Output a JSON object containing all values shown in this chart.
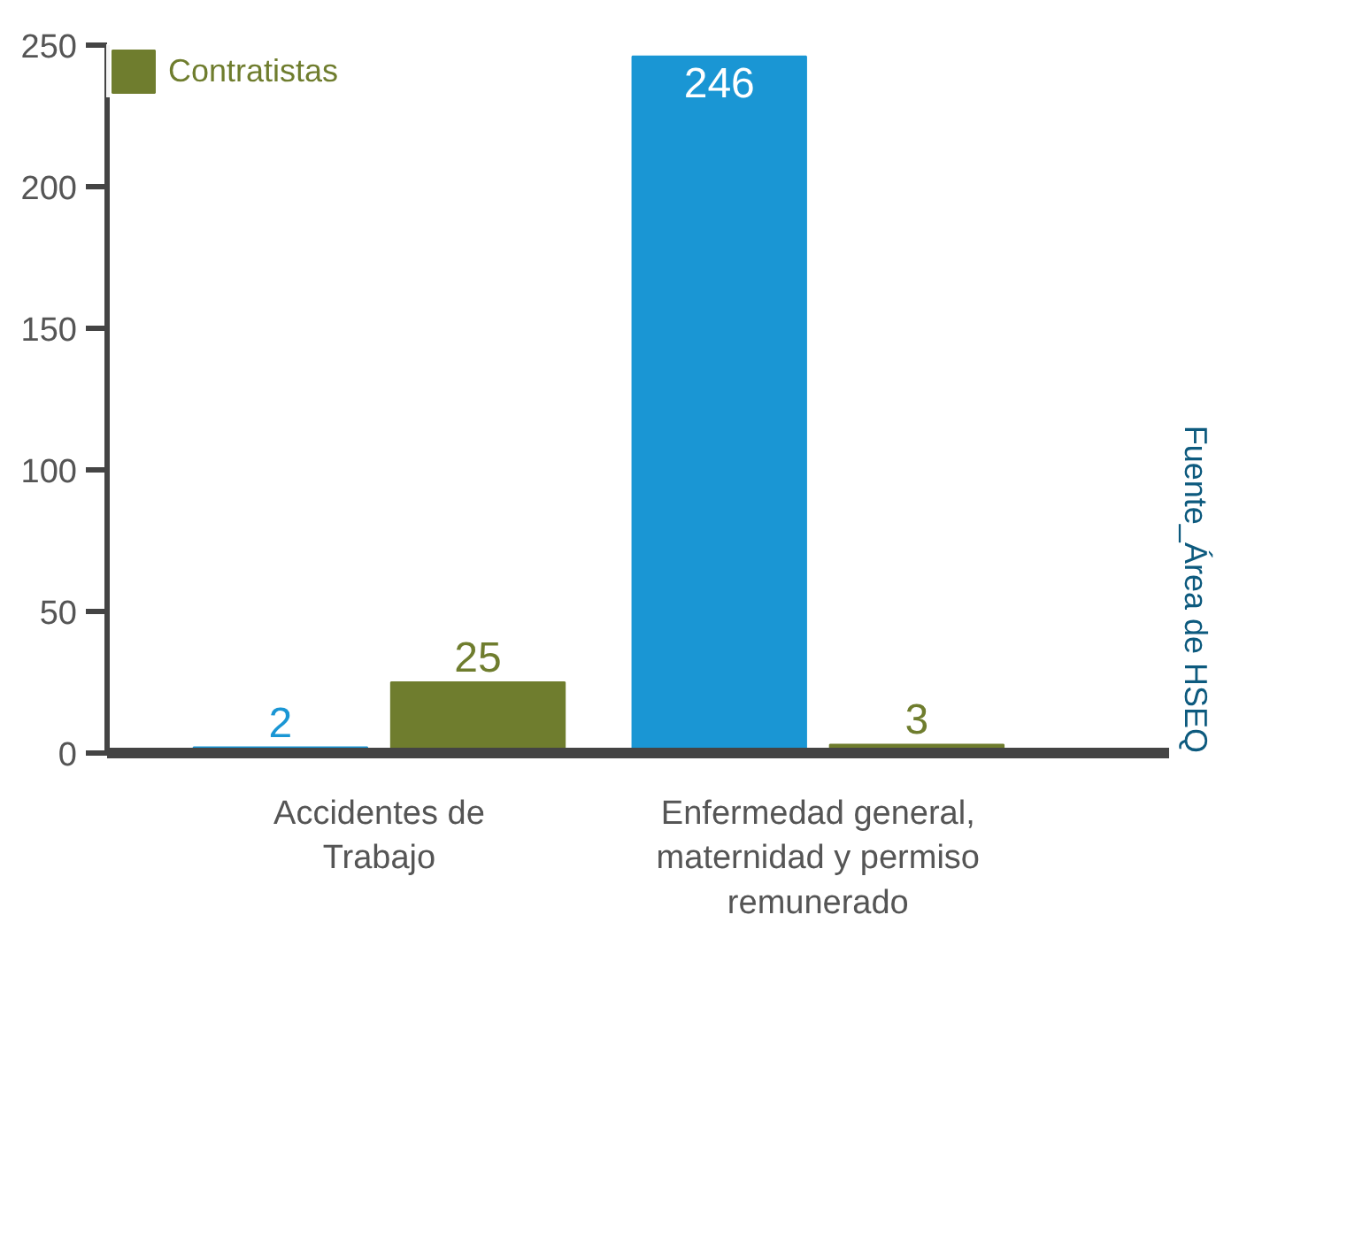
{
  "chart_data": {
    "type": "bar",
    "categories": [
      "Accidentes de Trabajo",
      "Enfermedad general, maternidad y permiso remunerado"
    ],
    "series": [
      {
        "color": "#1a96d4",
        "values": [
          2,
          246
        ]
      },
      {
        "name": "Contratistas",
        "color": "#6f7d2e",
        "values": [
          25,
          3
        ]
      }
    ],
    "ylim": [
      0,
      250
    ],
    "yticks": [
      0,
      50,
      100,
      150,
      200,
      250
    ],
    "data_labels": true,
    "grid": false,
    "legend": "top left",
    "annotations": [
      "Fuente_Área de HSEQ"
    ]
  }
}
